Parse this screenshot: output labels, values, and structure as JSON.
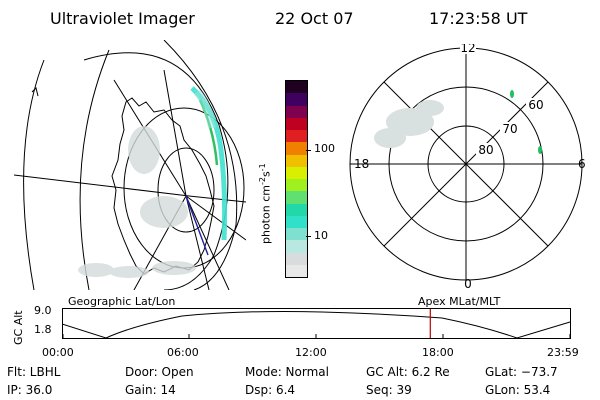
{
  "header": {
    "title": "Ultraviolet Imager",
    "date": "22 Oct 07",
    "time": "17:23:58 UT"
  },
  "colorbar": {
    "label": "photon cm",
    "label_exp1": "-2",
    "label_s": "s",
    "label_exp2": "-1",
    "tick_100": "100",
    "tick_10": "10",
    "colors": [
      "#e8e8e8",
      "#d8dcdc",
      "#b8e8e0",
      "#80e0d0",
      "#30e0c8",
      "#20d8a8",
      "#60e070",
      "#a0f020",
      "#d8f000",
      "#f0c000",
      "#f08000",
      "#e02020",
      "#c00020",
      "#800050",
      "#400060",
      "#200020"
    ]
  },
  "polar_plot": {
    "label_12": "12",
    "label_18": "18",
    "label_6": "6",
    "label_0": "0",
    "label_60": "60",
    "label_70": "70",
    "label_80": "80"
  },
  "timeline": {
    "y_axis_label": "GC Alt",
    "y_max": "9.0",
    "y_min": "1.8",
    "left_title": "Geographic Lat/Lon",
    "right_title": "Apex MLat/MLT",
    "ticks": [
      "00:00",
      "06:00",
      "12:00",
      "18:00",
      "23:59"
    ],
    "marker_time_hours": 17.4,
    "marker_color": "#c00000"
  },
  "status": {
    "flt": "Flt: LBHL",
    "door": "Door: Open",
    "mode": "Mode: Normal",
    "gc_alt": "GC Alt: 6.2 Re",
    "glat": "GLat: −73.7",
    "ip": "IP: 36.0",
    "gain": "Gain: 14",
    "dsp": "Dsp:    6.4",
    "seq": "Seq: 39",
    "glon": "GLon:  53.4"
  }
}
